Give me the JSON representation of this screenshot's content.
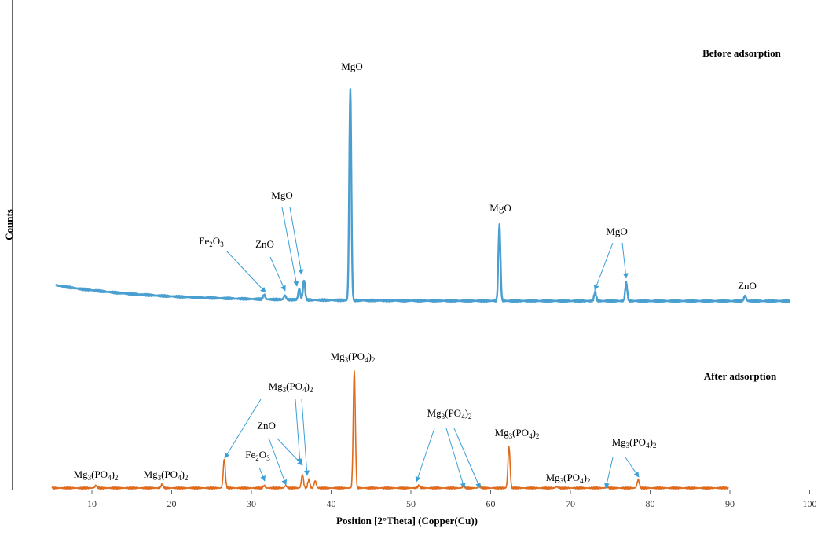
{
  "chart_data": {
    "type": "line",
    "xlabel": "Position [2°Theta] (Copper(Cu))",
    "ylabel": "Counts",
    "xlim": [
      0,
      100
    ],
    "x_ticks": [
      10,
      20,
      30,
      40,
      50,
      60,
      70,
      80,
      90,
      100
    ],
    "grid": false,
    "legend": "none",
    "series": [
      {
        "name": "Before adsorption",
        "color": "#4a9fd0",
        "x_range": [
          5.5,
          97.5
        ],
        "baseline": 0,
        "peaks": [
          {
            "x": 31.6,
            "h": 0.02
          },
          {
            "x": 34.2,
            "h": 0.02
          },
          {
            "x": 36.0,
            "h": 0.05
          },
          {
            "x": 36.6,
            "h": 0.09
          },
          {
            "x": 42.4,
            "h": 0.95
          },
          {
            "x": 61.1,
            "h": 0.34
          },
          {
            "x": 73.1,
            "h": 0.04
          },
          {
            "x": 77.0,
            "h": 0.08
          },
          {
            "x": 91.9,
            "h": 0.025
          }
        ]
      },
      {
        "name": "After adsorption",
        "color": "#e06a1c",
        "x_range": [
          5.0,
          89.8
        ],
        "baseline": 0,
        "peaks": [
          {
            "x": 10.5,
            "h": 0.02
          },
          {
            "x": 18.8,
            "h": 0.03
          },
          {
            "x": 26.6,
            "h": 0.24
          },
          {
            "x": 31.6,
            "h": 0.02
          },
          {
            "x": 34.3,
            "h": 0.02
          },
          {
            "x": 36.4,
            "h": 0.11
          },
          {
            "x": 37.2,
            "h": 0.07
          },
          {
            "x": 38.0,
            "h": 0.06
          },
          {
            "x": 42.9,
            "h": 0.97
          },
          {
            "x": 51.0,
            "h": 0.02
          },
          {
            "x": 56.6,
            "h": 0.015
          },
          {
            "x": 58.6,
            "h": 0.02
          },
          {
            "x": 62.3,
            "h": 0.34
          },
          {
            "x": 68.3,
            "h": 0.01
          },
          {
            "x": 74.6,
            "h": 0.01
          },
          {
            "x": 78.5,
            "h": 0.07
          }
        ]
      }
    ],
    "panel_titles": [
      "Before adsorption",
      "After adsorption"
    ],
    "annotations": [
      {
        "series": 0,
        "label": "MgO",
        "targets": []
      },
      {
        "series": 0,
        "label": "Fe2O3",
        "targets": [
          31.6
        ]
      },
      {
        "series": 0,
        "label": "ZnO",
        "targets": [
          34.2
        ]
      },
      {
        "series": 0,
        "label": "MgO",
        "targets": [
          36.0,
          36.6
        ]
      },
      {
        "series": 0,
        "label": "MgO",
        "targets": []
      },
      {
        "series": 0,
        "label": "MgO",
        "targets": [
          73.1,
          77.0
        ]
      },
      {
        "series": 0,
        "label": "ZnO",
        "targets": []
      },
      {
        "series": 1,
        "label": "Mg3(PO4)2",
        "targets": []
      },
      {
        "series": 1,
        "label": "Mg3(PO4)2",
        "targets": [
          26.6,
          36.4,
          37.2
        ]
      },
      {
        "series": 1,
        "label": "ZnO",
        "targets": [
          34.3,
          36.1
        ]
      },
      {
        "series": 1,
        "label": "Fe2O3",
        "targets": [
          31.6
        ]
      },
      {
        "series": 1,
        "label": "Mg3(PO4)2",
        "targets": [
          51.0,
          56.6,
          58.6
        ]
      },
      {
        "series": 1,
        "label": "Mg3(PO4)2",
        "targets": []
      },
      {
        "series": 1,
        "label": "Mg3(PO4)2",
        "targets": []
      },
      {
        "series": 1,
        "label": "Mg3(PO4)2",
        "targets": []
      },
      {
        "series": 1,
        "label": "Mg3(PO4)2",
        "targets": []
      },
      {
        "series": 1,
        "label": "Mg3(PO4)2",
        "targets": [
          74.6,
          78.5
        ]
      }
    ]
  }
}
